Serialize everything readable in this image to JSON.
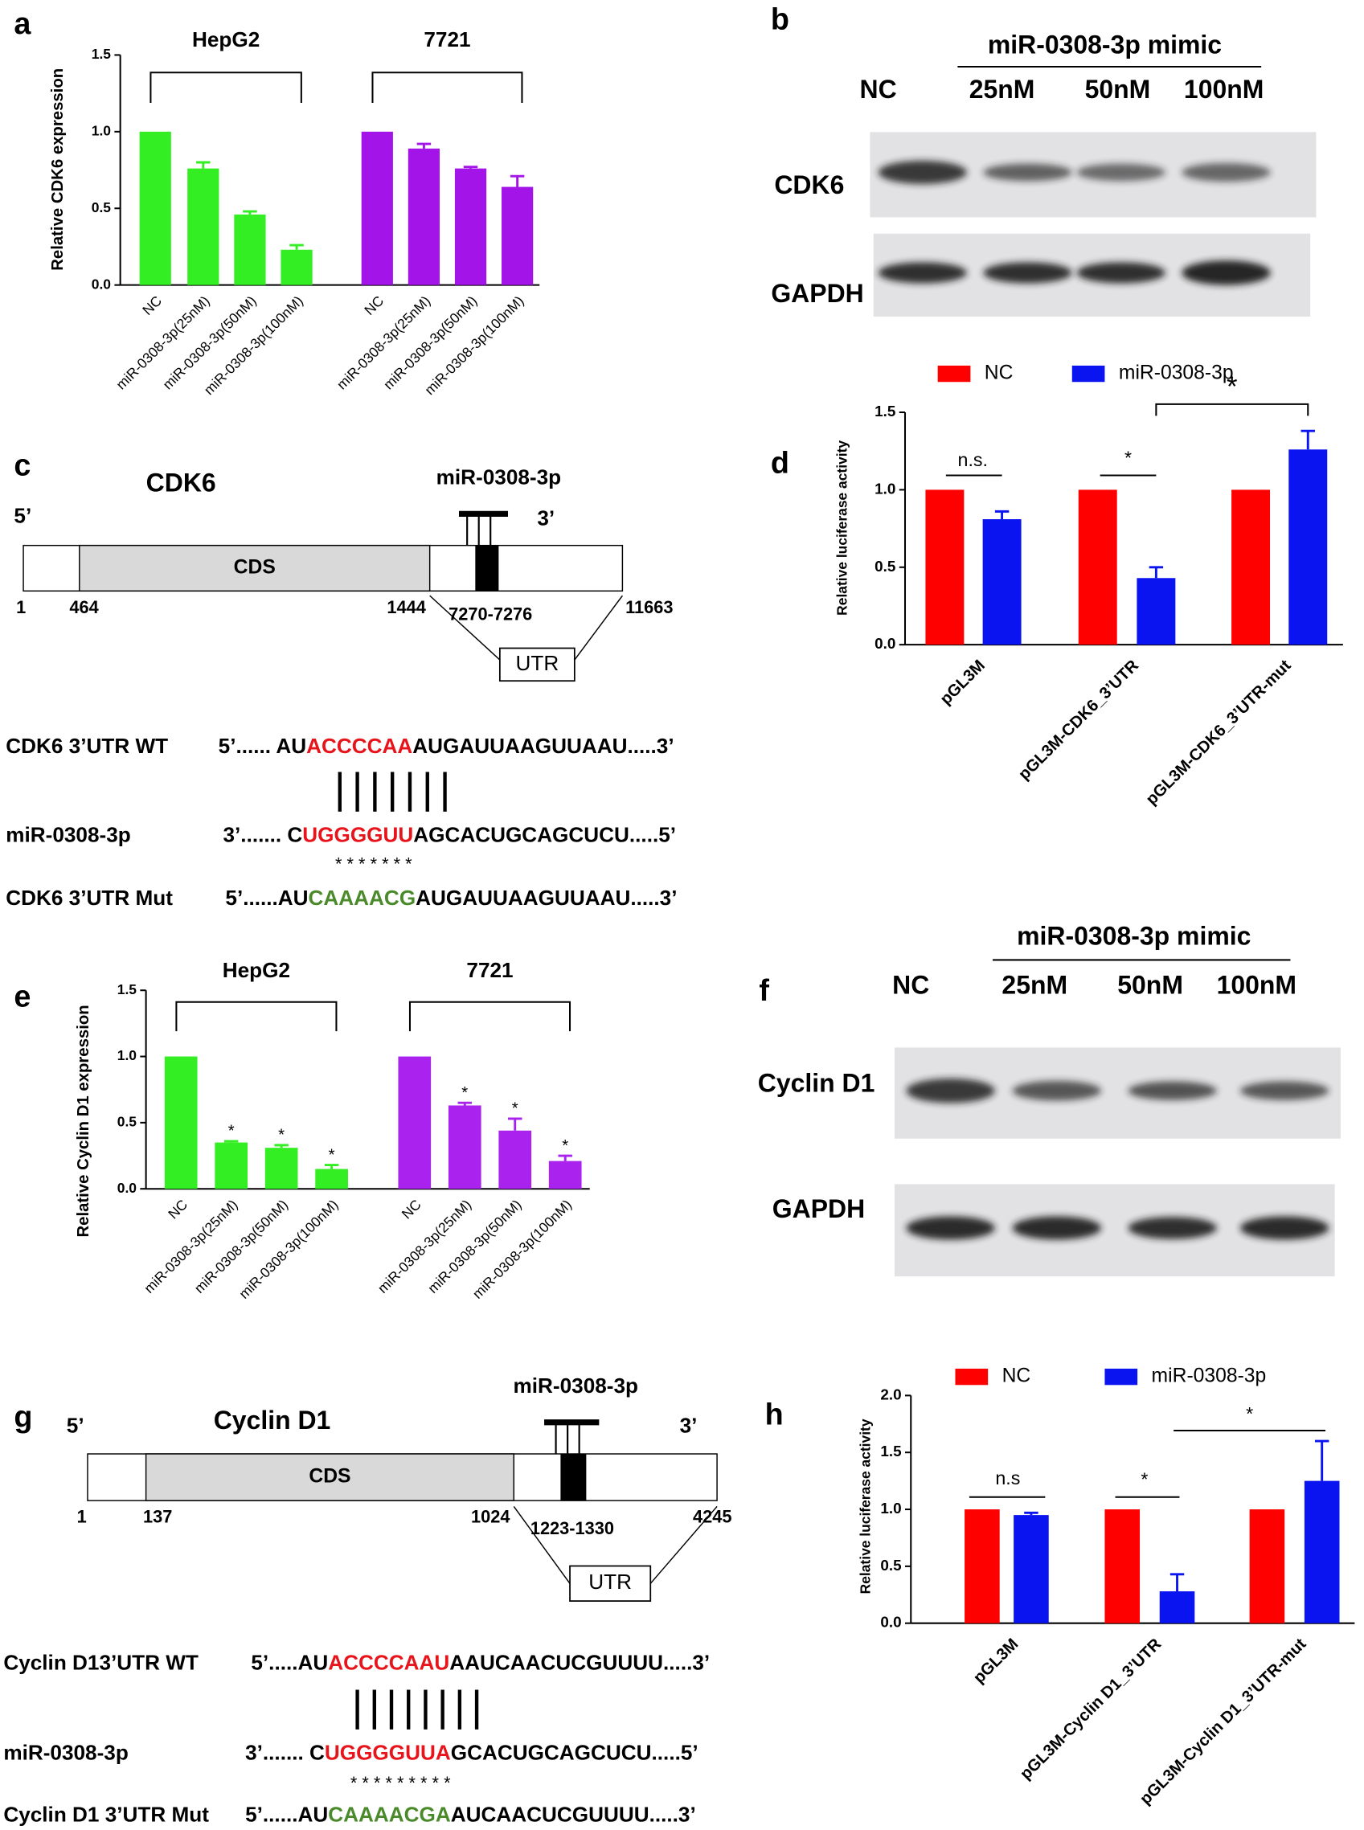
{
  "panel_labels": [
    "a",
    "b",
    "c",
    "d",
    "e",
    "f",
    "g",
    "h"
  ],
  "chart_data": [
    {
      "type": "bar",
      "ylabel": "Relative CDK6 expression",
      "ylim": [
        0,
        1.5
      ],
      "yticks": [
        {
          "value": 0,
          "label": "0.0"
        },
        0.5,
        {
          "value": 1,
          "label": "1.0"
        },
        1.5
      ],
      "groups": [
        {
          "name": "HepG2",
          "color": "#33ee22",
          "categories": [
            "NC",
            "miR-0308-3p(25nM)",
            "miR-0308-3p(50nM)",
            "miR-0308-3p(100nM)"
          ],
          "values": [
            1.0,
            0.76,
            0.46,
            0.23
          ],
          "errors": [
            null,
            0.04,
            0.02,
            0.03
          ]
        },
        {
          "name": "7721",
          "color": "#a214e8",
          "categories": [
            "NC",
            "miR-0308-3p(25nM)",
            "miR-0308-3p(50nM)",
            "miR-0308-3p(100nM)"
          ],
          "values": [
            1.0,
            0.89,
            0.76,
            0.64
          ],
          "errors": [
            null,
            0.03,
            0.01,
            0.07
          ]
        }
      ]
    },
    {
      "type": "grouped_bar",
      "ylabel": "Relative luciferase activity",
      "ylim": [
        0,
        1.5
      ],
      "yticks": [
        {
          "value": 0,
          "label": "0.0"
        },
        0.5,
        {
          "value": 1,
          "label": "1.0"
        },
        1.5
      ],
      "categories": [
        "pGL3M",
        "pGL3M-CDK6_3’UTR",
        "pGL3M-CDK6_3’UTR-mut"
      ],
      "series": [
        {
          "name": "NC",
          "color": "#ff0000",
          "values": [
            1,
            1,
            1
          ]
        },
        {
          "name": "miR-0308-3p",
          "color": "#0a14f0",
          "values": [
            0.81,
            0.43,
            1.26
          ],
          "errors": [
            0.05,
            0.07,
            0.12
          ]
        }
      ],
      "annotations": [
        "n.s.",
        "*",
        "*"
      ]
    },
    {
      "type": "bar",
      "ylabel": "Relative Cyclin D1 expression",
      "ylim": [
        0,
        1.5
      ],
      "yticks": [
        {
          "value": 0,
          "label": "0.0"
        },
        0.5,
        {
          "value": 1,
          "label": "1.0"
        },
        1.5
      ],
      "groups": [
        {
          "name": "HepG2",
          "color": "#33ee22",
          "categories": [
            "NC",
            "miR-0308-3p(25nM)",
            "miR-0308-3p(50nM)",
            "miR-0308-3p(100nM)"
          ],
          "values": [
            1.0,
            0.35,
            0.31,
            0.15
          ],
          "errors": [
            null,
            0.01,
            0.02,
            0.03
          ],
          "significance": [
            null,
            "*",
            "*",
            "*"
          ]
        },
        {
          "name": "7721",
          "color": "#aa22ee",
          "categories": [
            "NC",
            "miR-0308-3p(25nM)",
            "miR-0308-3p(50nM)",
            "miR-0308-3p(100nM)"
          ],
          "values": [
            1.0,
            0.63,
            0.44,
            0.21
          ],
          "errors": [
            null,
            0.02,
            0.09,
            0.04
          ],
          "significance": [
            null,
            "*",
            "*",
            "*"
          ]
        }
      ]
    },
    {
      "type": "grouped_bar",
      "ylabel": "Relative luciferase activity",
      "ylim": [
        0,
        2
      ],
      "yticks": [
        {
          "value": 0,
          "label": "0.0"
        },
        0.5,
        {
          "value": 1,
          "label": "1.0"
        },
        1.5,
        {
          "value": 2,
          "label": "2.0"
        }
      ],
      "categories": [
        "pGL3M",
        "pGL3M-Cyclin D1_3’UTR",
        "pGL3M-Cyclin D1_3’UTR-mut"
      ],
      "series": [
        {
          "name": "NC",
          "color": "#ff0000",
          "values": [
            1,
            1,
            1
          ]
        },
        {
          "name": "miR-0308-3p",
          "color": "#0a14f0",
          "values": [
            0.95,
            0.28,
            1.25
          ],
          "errors": [
            0.02,
            0.15,
            0.35
          ]
        }
      ],
      "annotations": [
        "n.s",
        "*",
        "*"
      ]
    }
  ],
  "blots": [
    {
      "header": "miR-0308-3p mimic",
      "lanes": [
        "NC",
        "25nM",
        "50nM",
        "100nM"
      ],
      "rows": [
        "CDK6",
        "GAPDH"
      ]
    },
    {
      "header": "miR-0308-3p mimic",
      "lanes": [
        "NC",
        "25nM",
        "50nM",
        "100nM"
      ],
      "rows": [
        "Cyclin D1",
        "GAPDH"
      ]
    }
  ],
  "diagrams": [
    {
      "gene": "CDK6",
      "mirna": "miR-0308-3p",
      "five": "5’",
      "three": "3’",
      "cds": "CDS",
      "utr": "UTR",
      "positions": [
        "1",
        "464",
        "1444",
        "7270-7276",
        "11663"
      ],
      "sequences": [
        {
          "label": "CDK6  3’UTR WT",
          "parts": [
            {
              "text": "5’...... AU",
              "color": "#000000"
            },
            {
              "text": "ACCCCAA",
              "color": "#e8141b"
            },
            {
              "text": "AUGAUUAAGUUAAU.....3’",
              "color": "#000000"
            }
          ]
        },
        {
          "label": "miR-0308-3p",
          "parts": [
            {
              "text": "3’....... C",
              "color": "#000000"
            },
            {
              "text": "UGGGGUU",
              "color": "#e8141b"
            },
            {
              "text": "AGCACUGCAGCUCU.....5’",
              "color": "#000000"
            }
          ]
        },
        {
          "label": "CDK6  3’UTR Mut",
          "parts": [
            {
              "text": "5’......AU",
              "color": "#000000"
            },
            {
              "text": "CAAAACG",
              "color": "#4a8a2a"
            },
            {
              "text": "AUGAUUAAGUUAAU.....3’",
              "color": "#000000"
            }
          ]
        }
      ],
      "stars": "* * * * * * *"
    },
    {
      "gene": "Cyclin D1",
      "mirna": "miR-0308-3p",
      "five": "5’",
      "three": "3’",
      "cds": "CDS",
      "utr": "UTR",
      "positions": [
        "1",
        "137",
        "1024",
        "1223-1330",
        "4245"
      ],
      "sequences": [
        {
          "label": "Cyclin D13’UTR WT",
          "parts": [
            {
              "text": "5’.....AU",
              "color": "#000000"
            },
            {
              "text": "ACCCCAAU",
              "color": "#e8141b"
            },
            {
              "text": "AAUCAACUCGUUUU.....3’",
              "color": "#000000"
            }
          ]
        },
        {
          "label": "miR-0308-3p",
          "parts": [
            {
              "text": "3’....... C",
              "color": "#000000"
            },
            {
              "text": "UGGGGUUA",
              "color": "#e8141b"
            },
            {
              "text": "GCACUGCAGCUCU.....5’",
              "color": "#000000"
            }
          ]
        },
        {
          "label": "Cyclin D1 3’UTR Mut",
          "parts": [
            {
              "text": "5’......AU",
              "color": "#000000"
            },
            {
              "text": "CAAAACGA",
              "color": "#4a8a2a"
            },
            {
              "text": "AUCAACUCGUUUU.....3’",
              "color": "#000000"
            }
          ]
        }
      ],
      "stars": "* * * * * * *  * *"
    }
  ]
}
